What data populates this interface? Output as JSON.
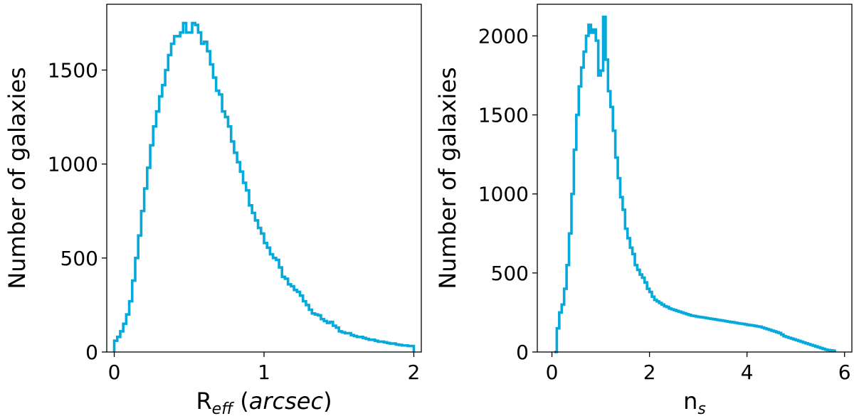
{
  "colors": {
    "series": "#06a9dc",
    "axes": "#000000",
    "background": "#ffffff"
  },
  "chart_data": [
    {
      "type": "histogram",
      "xlabel_main": "R",
      "xlabel_sub": "eff",
      "xlabel_unit": "(arcsec)",
      "ylabel": "Number of galaxies",
      "xlim": [
        -0.05,
        2.05
      ],
      "ylim": [
        0,
        1850
      ],
      "xticks": [
        0,
        1,
        2
      ],
      "xtick_labels": [
        "0",
        "1",
        "2"
      ],
      "yticks": [
        0,
        500,
        1000,
        1500
      ],
      "ytick_labels": [
        "0",
        "500",
        "1000",
        "1500"
      ],
      "grid": false,
      "bin_edges_start": 0.0,
      "bin_width": 0.02,
      "values": [
        60,
        80,
        110,
        150,
        200,
        270,
        380,
        500,
        620,
        750,
        870,
        980,
        1100,
        1200,
        1280,
        1360,
        1420,
        1500,
        1580,
        1640,
        1680,
        1680,
        1700,
        1750,
        1700,
        1700,
        1750,
        1740,
        1700,
        1640,
        1650,
        1600,
        1530,
        1460,
        1390,
        1370,
        1280,
        1250,
        1200,
        1120,
        1060,
        1010,
        960,
        900,
        860,
        780,
        740,
        700,
        660,
        630,
        580,
        555,
        520,
        500,
        490,
        450,
        400,
        390,
        360,
        350,
        330,
        320,
        300,
        270,
        250,
        225,
        205,
        200,
        195,
        175,
        165,
        155,
        160,
        140,
        130,
        110,
        105,
        100,
        100,
        90,
        85,
        80,
        80,
        75,
        70,
        65,
        65,
        60,
        55,
        55,
        52,
        48,
        45,
        45,
        40,
        38,
        35,
        35,
        32,
        32
      ]
    },
    {
      "type": "histogram",
      "xlabel_main": "n",
      "xlabel_sub": "s",
      "xlabel_unit": "",
      "ylabel": "Number of galaxies",
      "xlim": [
        -0.3,
        6.15
      ],
      "ylim": [
        0,
        2200
      ],
      "xticks": [
        0,
        2,
        4,
        6
      ],
      "xtick_labels": [
        "0",
        "2",
        "4",
        "6"
      ],
      "yticks": [
        0,
        500,
        1000,
        1500,
        2000
      ],
      "ytick_labels": [
        "0",
        "500",
        "1000",
        "1500",
        "2000"
      ],
      "grid": false,
      "bin_edges_start": 0.05,
      "bin_width": 0.05,
      "values": [
        0,
        150,
        250,
        300,
        400,
        550,
        750,
        1000,
        1280,
        1500,
        1680,
        1800,
        1900,
        2000,
        2070,
        2020,
        2040,
        1970,
        1750,
        1780,
        2120,
        1850,
        1650,
        1550,
        1400,
        1230,
        1100,
        980,
        900,
        780,
        720,
        660,
        620,
        550,
        520,
        490,
        470,
        440,
        400,
        380,
        350,
        330,
        320,
        310,
        300,
        290,
        285,
        275,
        270,
        265,
        260,
        255,
        250,
        245,
        240,
        235,
        230,
        228,
        225,
        222,
        220,
        218,
        215,
        212,
        210,
        208,
        205,
        202,
        200,
        198,
        195,
        192,
        190,
        188,
        185,
        182,
        180,
        178,
        175,
        172,
        170,
        168,
        165,
        162,
        160,
        155,
        150,
        145,
        140,
        135,
        130,
        125,
        120,
        110,
        100,
        95,
        90,
        85,
        80,
        75,
        70,
        65,
        60,
        55,
        50,
        45,
        40,
        35,
        30,
        25,
        20,
        15,
        12,
        10,
        8
      ]
    }
  ]
}
